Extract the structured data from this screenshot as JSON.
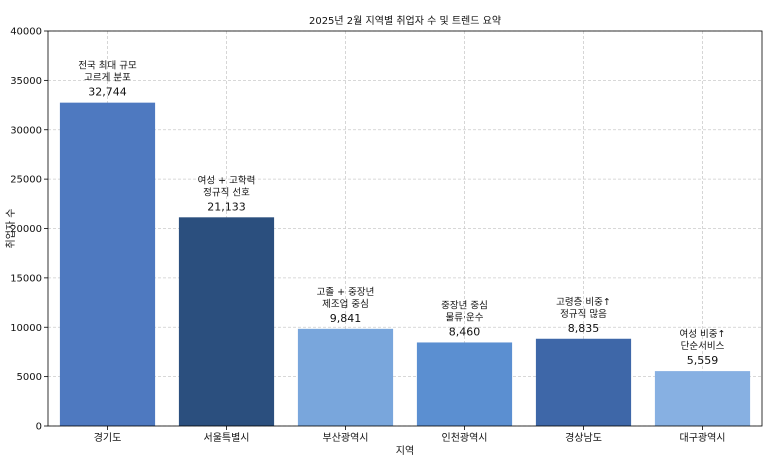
{
  "chart_data": {
    "type": "bar",
    "title": "2025년 2월 지역별 취업자 수 및 트렌드 요약",
    "xlabel": "지역",
    "ylabel": "취업자 수",
    "ylim": [
      0,
      40000
    ],
    "yticks": [
      0,
      5000,
      10000,
      15000,
      20000,
      25000,
      30000,
      35000,
      40000
    ],
    "grid": true,
    "categories": [
      "경기도",
      "서울특별시",
      "부산광역시",
      "인천광역시",
      "경상남도",
      "대구광역시"
    ],
    "values": [
      32744,
      21133,
      9841,
      8460,
      8835,
      5559
    ],
    "value_labels": [
      "32,744",
      "21,133",
      "9,841",
      "8,460",
      "8,835",
      "5,559"
    ],
    "annotations": [
      [
        "전국 최대 규모",
        "고르게 분포"
      ],
      [
        "여성 + 고학력",
        "정규직 선호"
      ],
      [
        "고졸 + 중장년",
        "제조업 중심"
      ],
      [
        "중장년 중심",
        "물류·운수"
      ],
      [
        "고령층 비중↑",
        "정규직 많음"
      ],
      [
        "여성 비중↑",
        "단순서비스"
      ]
    ],
    "colors": [
      "#4e79c0",
      "#2b4f7e",
      "#79a6dc",
      "#5b8fd1",
      "#3e67a8",
      "#87b0e2"
    ]
  }
}
